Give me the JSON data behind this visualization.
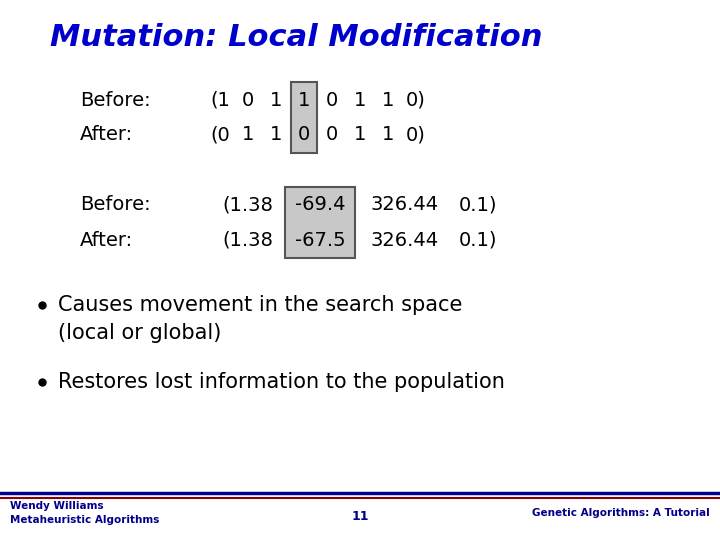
{
  "title": "Mutation: Local Modification",
  "title_color": "#0000CC",
  "title_fontsize": 22,
  "title_fontstyle": "italic",
  "title_fontweight": "bold",
  "slide_bg": "#FFFFFF",
  "footer_left": "Wendy Williams\nMetaheuristic Algorithms",
  "footer_center": "11",
  "footer_right": "Genetic Algorithms: A Tutorial",
  "footer_color": "#00008B",
  "highlight_box_color": "#C8C8C8",
  "highlight_box_edge": "#555555",
  "before_binary_label": "Before:",
  "before_binary_seq": [
    "(1",
    "0",
    "1",
    "1",
    "0",
    "1",
    "1",
    "0)"
  ],
  "before_binary_highlight_idx": 3,
  "after_binary_label": "After:",
  "after_binary_seq": [
    "(0",
    "1",
    "1",
    "0",
    "0",
    "1",
    "1",
    "0)"
  ],
  "after_binary_highlight_idx": 3,
  "before_real_label": "Before:",
  "before_real_seq": [
    "(1.38",
    "-69.4",
    "326.44",
    "0.1)"
  ],
  "before_real_highlight_idx": 1,
  "after_real_label": "After:",
  "after_real_seq": [
    "(1.38",
    "-67.5",
    "326.44",
    "0.1)"
  ],
  "after_real_highlight_idx": 1,
  "bullet1_line1": "Causes movement in the search space",
  "bullet1_line2": "(local or global)",
  "bullet2": "Restores lost information to the population",
  "text_color": "#000000",
  "label_color": "#000000",
  "divider_color_top": "#00008B",
  "divider_color_bottom": "#8B0000",
  "content_fontsize": 14,
  "label_fontsize": 14,
  "bullet_fontsize": 15
}
